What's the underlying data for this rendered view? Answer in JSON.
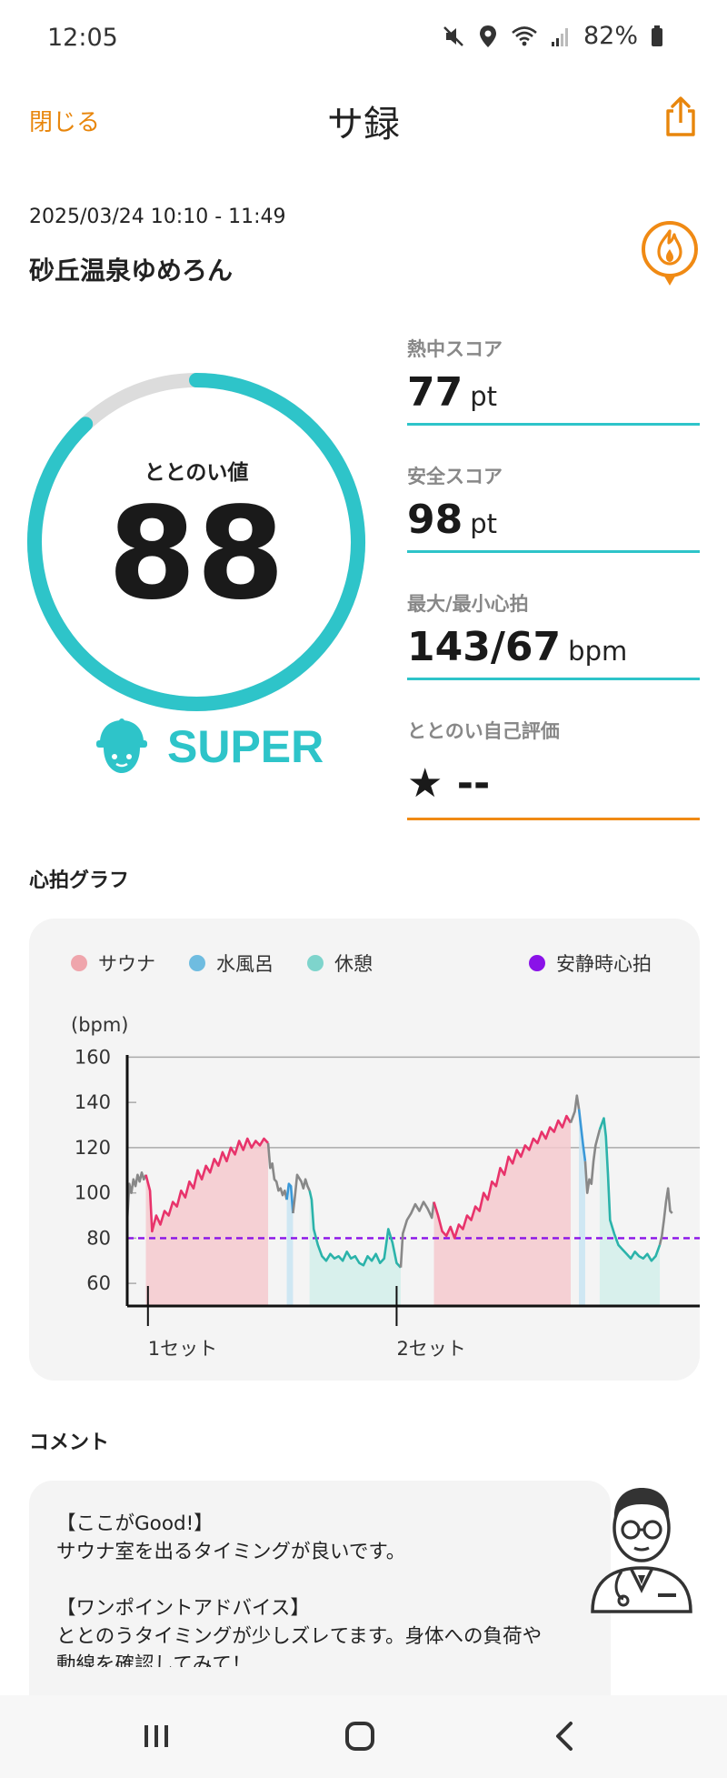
{
  "status_bar": {
    "time": "12:05",
    "battery": "82%",
    "icons": [
      "mute-icon",
      "location-icon",
      "wifi-icon",
      "signal-icon",
      "battery-icon"
    ]
  },
  "header": {
    "close_label": "閉じる",
    "title": "サ録",
    "share_icon": "share-icon"
  },
  "session": {
    "datetime": "2025/03/24 10:10 - 11:49",
    "facility": "砂丘温泉ゆめろん",
    "badge_icon": "fire-badge-icon"
  },
  "totonoi": {
    "label": "ととのい値",
    "value": "88",
    "gauge_fraction": 0.88,
    "rank": "SUPER",
    "rank_icon": "sauna-hat-icon"
  },
  "scores": [
    {
      "label": "熱中スコア",
      "value": "77",
      "unit": "pt"
    },
    {
      "label": "安全スコア",
      "value": "98",
      "unit": "pt"
    },
    {
      "label": "最大/最小心拍",
      "value": "143/67",
      "unit": "bpm"
    }
  ],
  "self_eval": {
    "label": "ととのい自己評価",
    "star": "★",
    "value": "--"
  },
  "heart_graph": {
    "section_title": "心拍グラフ",
    "legend": [
      {
        "label": "サウナ",
        "color": "#EFA5AC"
      },
      {
        "label": "水風呂",
        "color": "#6FBCE0"
      },
      {
        "label": "休憩",
        "color": "#7ED4CC"
      }
    ],
    "resting_legend": {
      "label": "安静時心拍",
      "color": "#8A12E8"
    }
  },
  "chart_data": {
    "type": "line",
    "ylabel": "(bpm)",
    "yticks": [
      60,
      80,
      100,
      120,
      140,
      160
    ],
    "ylim": [
      50,
      165
    ],
    "resting_hr": 80,
    "sets": [
      "1セット",
      "2セット"
    ],
    "colors": {
      "sauna": "#E8336B",
      "sauna_fill": "#F4C9CE",
      "cold": "#3A98D8",
      "cold_fill": "#C8E4F2",
      "rest": "#2BB3AA",
      "rest_fill": "#D2EEEA",
      "other": "#888888"
    },
    "segments": [
      {
        "kind": "other",
        "x": [
          0,
          1,
          2,
          3,
          4,
          5,
          6,
          7,
          8,
          9
        ],
        "y": [
          88,
          104,
          100,
          106,
          103,
          108,
          105,
          109,
          106,
          108
        ]
      },
      {
        "kind": "sauna",
        "x": [
          9,
          11,
          12,
          14,
          16,
          18,
          20,
          22,
          24,
          26,
          28,
          30,
          32,
          34,
          36,
          38,
          40,
          42,
          44,
          46,
          48,
          50,
          52,
          54,
          56,
          58,
          60,
          62,
          64,
          66,
          68
        ],
        "y": [
          108,
          101,
          83,
          90,
          86,
          92,
          90,
          96,
          94,
          101,
          98,
          105,
          102,
          110,
          106,
          112,
          109,
          115,
          112,
          118,
          114,
          120,
          117,
          123,
          119,
          124,
          120,
          123,
          121,
          124,
          122
        ]
      },
      {
        "kind": "other",
        "x": [
          68,
          69,
          70,
          71,
          72,
          73,
          74,
          75,
          76,
          77
        ],
        "y": [
          122,
          111,
          113,
          106,
          105,
          101,
          102,
          99,
          101,
          97
        ]
      },
      {
        "kind": "cold",
        "x": [
          77,
          78,
          79,
          80
        ],
        "y": [
          97,
          104,
          103,
          91
        ]
      },
      {
        "kind": "other",
        "x": [
          80,
          81,
          82,
          84,
          85,
          86,
          87,
          88
        ],
        "y": [
          91,
          99,
          108,
          105,
          102,
          106,
          103,
          101
        ]
      },
      {
        "kind": "rest",
        "x": [
          88,
          89,
          90,
          92,
          94,
          96,
          98,
          100,
          102,
          104,
          106,
          108,
          110,
          112,
          114,
          116,
          118,
          120,
          122,
          124,
          126,
          128,
          130,
          132
        ],
        "y": [
          101,
          97,
          84,
          77,
          72,
          70,
          73,
          71,
          72,
          70,
          74,
          71,
          72,
          69,
          68,
          72,
          70,
          73,
          69,
          71,
          84,
          78,
          69,
          67
        ]
      },
      {
        "kind": "other",
        "x": [
          132,
          133,
          135,
          137,
          139,
          141,
          143,
          145,
          147,
          148
        ],
        "y": [
          67,
          82,
          88,
          91,
          95,
          92,
          96,
          93,
          89,
          96
        ]
      },
      {
        "kind": "sauna",
        "x": [
          148,
          150,
          152,
          154,
          156,
          158,
          160,
          162,
          164,
          166,
          168,
          170,
          172,
          174,
          176,
          178,
          180,
          182,
          184,
          186,
          188,
          190,
          192,
          194,
          196,
          198,
          200,
          202,
          204,
          206,
          208,
          210,
          212,
          214
        ],
        "y": [
          96,
          90,
          83,
          81,
          85,
          80,
          86,
          84,
          90,
          88,
          94,
          92,
          100,
          97,
          105,
          103,
          111,
          108,
          116,
          113,
          119,
          116,
          121,
          119,
          124,
          122,
          127,
          124,
          129,
          127,
          132,
          129,
          134,
          131
        ]
      },
      {
        "kind": "other",
        "x": [
          214,
          216,
          217,
          218
        ],
        "y": [
          131,
          136,
          143,
          137
        ]
      },
      {
        "kind": "cold",
        "x": [
          218,
          219,
          220,
          221
        ],
        "y": [
          137,
          129,
          121,
          114
        ]
      },
      {
        "kind": "other",
        "x": [
          221,
          222,
          223,
          224,
          225,
          226,
          228
        ],
        "y": [
          114,
          100,
          106,
          104,
          114,
          121,
          128
        ]
      },
      {
        "kind": "rest",
        "x": [
          228,
          230,
          231,
          232,
          233,
          235,
          237,
          239,
          241,
          243,
          245,
          247,
          249,
          251,
          253,
          255,
          257
        ],
        "y": [
          128,
          133,
          125,
          108,
          88,
          82,
          77,
          75,
          73,
          71,
          74,
          72,
          71,
          73,
          70,
          72,
          77
        ]
      },
      {
        "kind": "other",
        "x": [
          257,
          258,
          259,
          260,
          261,
          262,
          263
        ],
        "y": [
          77,
          81,
          88,
          96,
          102,
          92,
          91
        ]
      }
    ],
    "shaded": [
      {
        "kind": "sauna",
        "x0": 9,
        "x1": 68
      },
      {
        "kind": "cold",
        "x0": 77,
        "x1": 80
      },
      {
        "kind": "rest",
        "x0": 88,
        "x1": 132
      },
      {
        "kind": "sauna",
        "x0": 148,
        "x1": 214
      },
      {
        "kind": "cold",
        "x0": 218,
        "x1": 221
      },
      {
        "kind": "rest",
        "x0": 228,
        "x1": 257
      }
    ],
    "set_ticks": [
      10,
      130
    ],
    "xlim": [
      -16,
      248
    ]
  },
  "comment": {
    "section_title": "コメント",
    "lines": [
      "【ここがGood!】",
      "サウナ室を出るタイミングが良いです。",
      "",
      "【ワンポイントアドバイス】",
      "ととのうタイミングが少しズレてます。身体への負荷や",
      "動線を確認してみて！"
    ],
    "avatar_icon": "doctor-avatar-icon"
  },
  "nav_bar": {
    "recent_icon": "recent-apps-icon",
    "home_icon": "home-icon",
    "back_icon": "back-icon"
  }
}
